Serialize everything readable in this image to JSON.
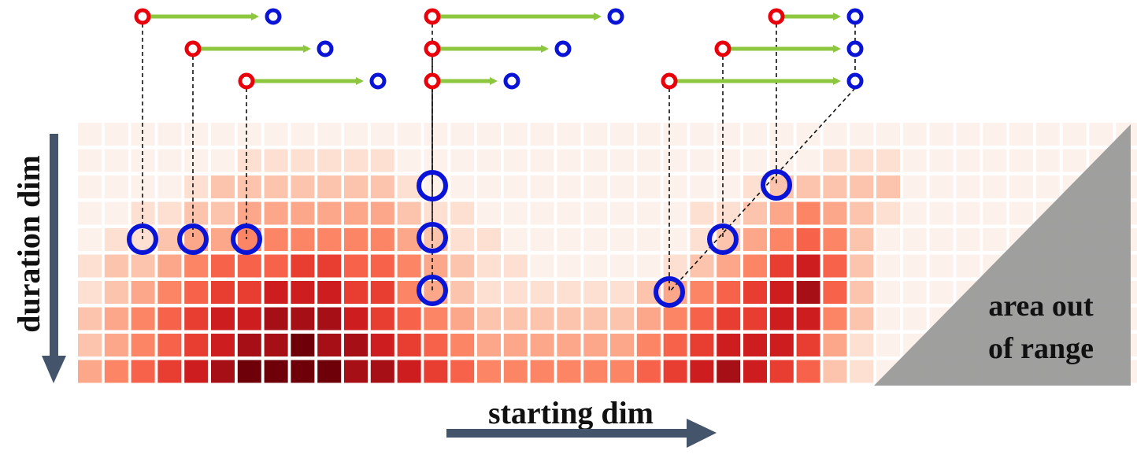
{
  "labels": {
    "y_axis": "duration dim",
    "x_axis": "starting dim",
    "out_of_range_line1": "area out",
    "out_of_range_line2": "of range"
  },
  "colors": {
    "start_point": "#e8000b",
    "end_point": "#0a14d6",
    "arrow": "#8dc63f",
    "axis_arrow": "#44546a",
    "out_of_range": "#9a9a9a"
  },
  "heatmap_levels": [
    "0000000000000000000000000000000000000000",
    "0000001111110000000000000000111000000000",
    "0000122222221000000000000122222000000000",
    "0011223333332110000000011234321000000000",
    "0112334444443211000000012345420000000000",
    "1223455566554321100000123467520000000000",
    "1234566777664321111112345678520000000000",
    "2345677888765432222223456677420000000000",
    "2345678898876543333334567776310000000000",
    "3456789999887654444445678765210000000000"
  ],
  "groups": [
    {
      "proposals": [
        {
          "start": "A1",
          "end": "B1"
        },
        {
          "start": "A2",
          "end": "B2"
        },
        {
          "start": "A3",
          "end": "B3"
        }
      ]
    },
    {
      "proposals": [
        {
          "start": "A4",
          "end": "B4"
        },
        {
          "start": "A5",
          "end": "B5"
        },
        {
          "start": "A6",
          "end": "B6"
        }
      ]
    },
    {
      "proposals": [
        {
          "start": "A7",
          "end": "B7"
        },
        {
          "start": "A8",
          "end": "B8"
        },
        {
          "start": "A9",
          "end": "B9"
        }
      ]
    }
  ]
}
